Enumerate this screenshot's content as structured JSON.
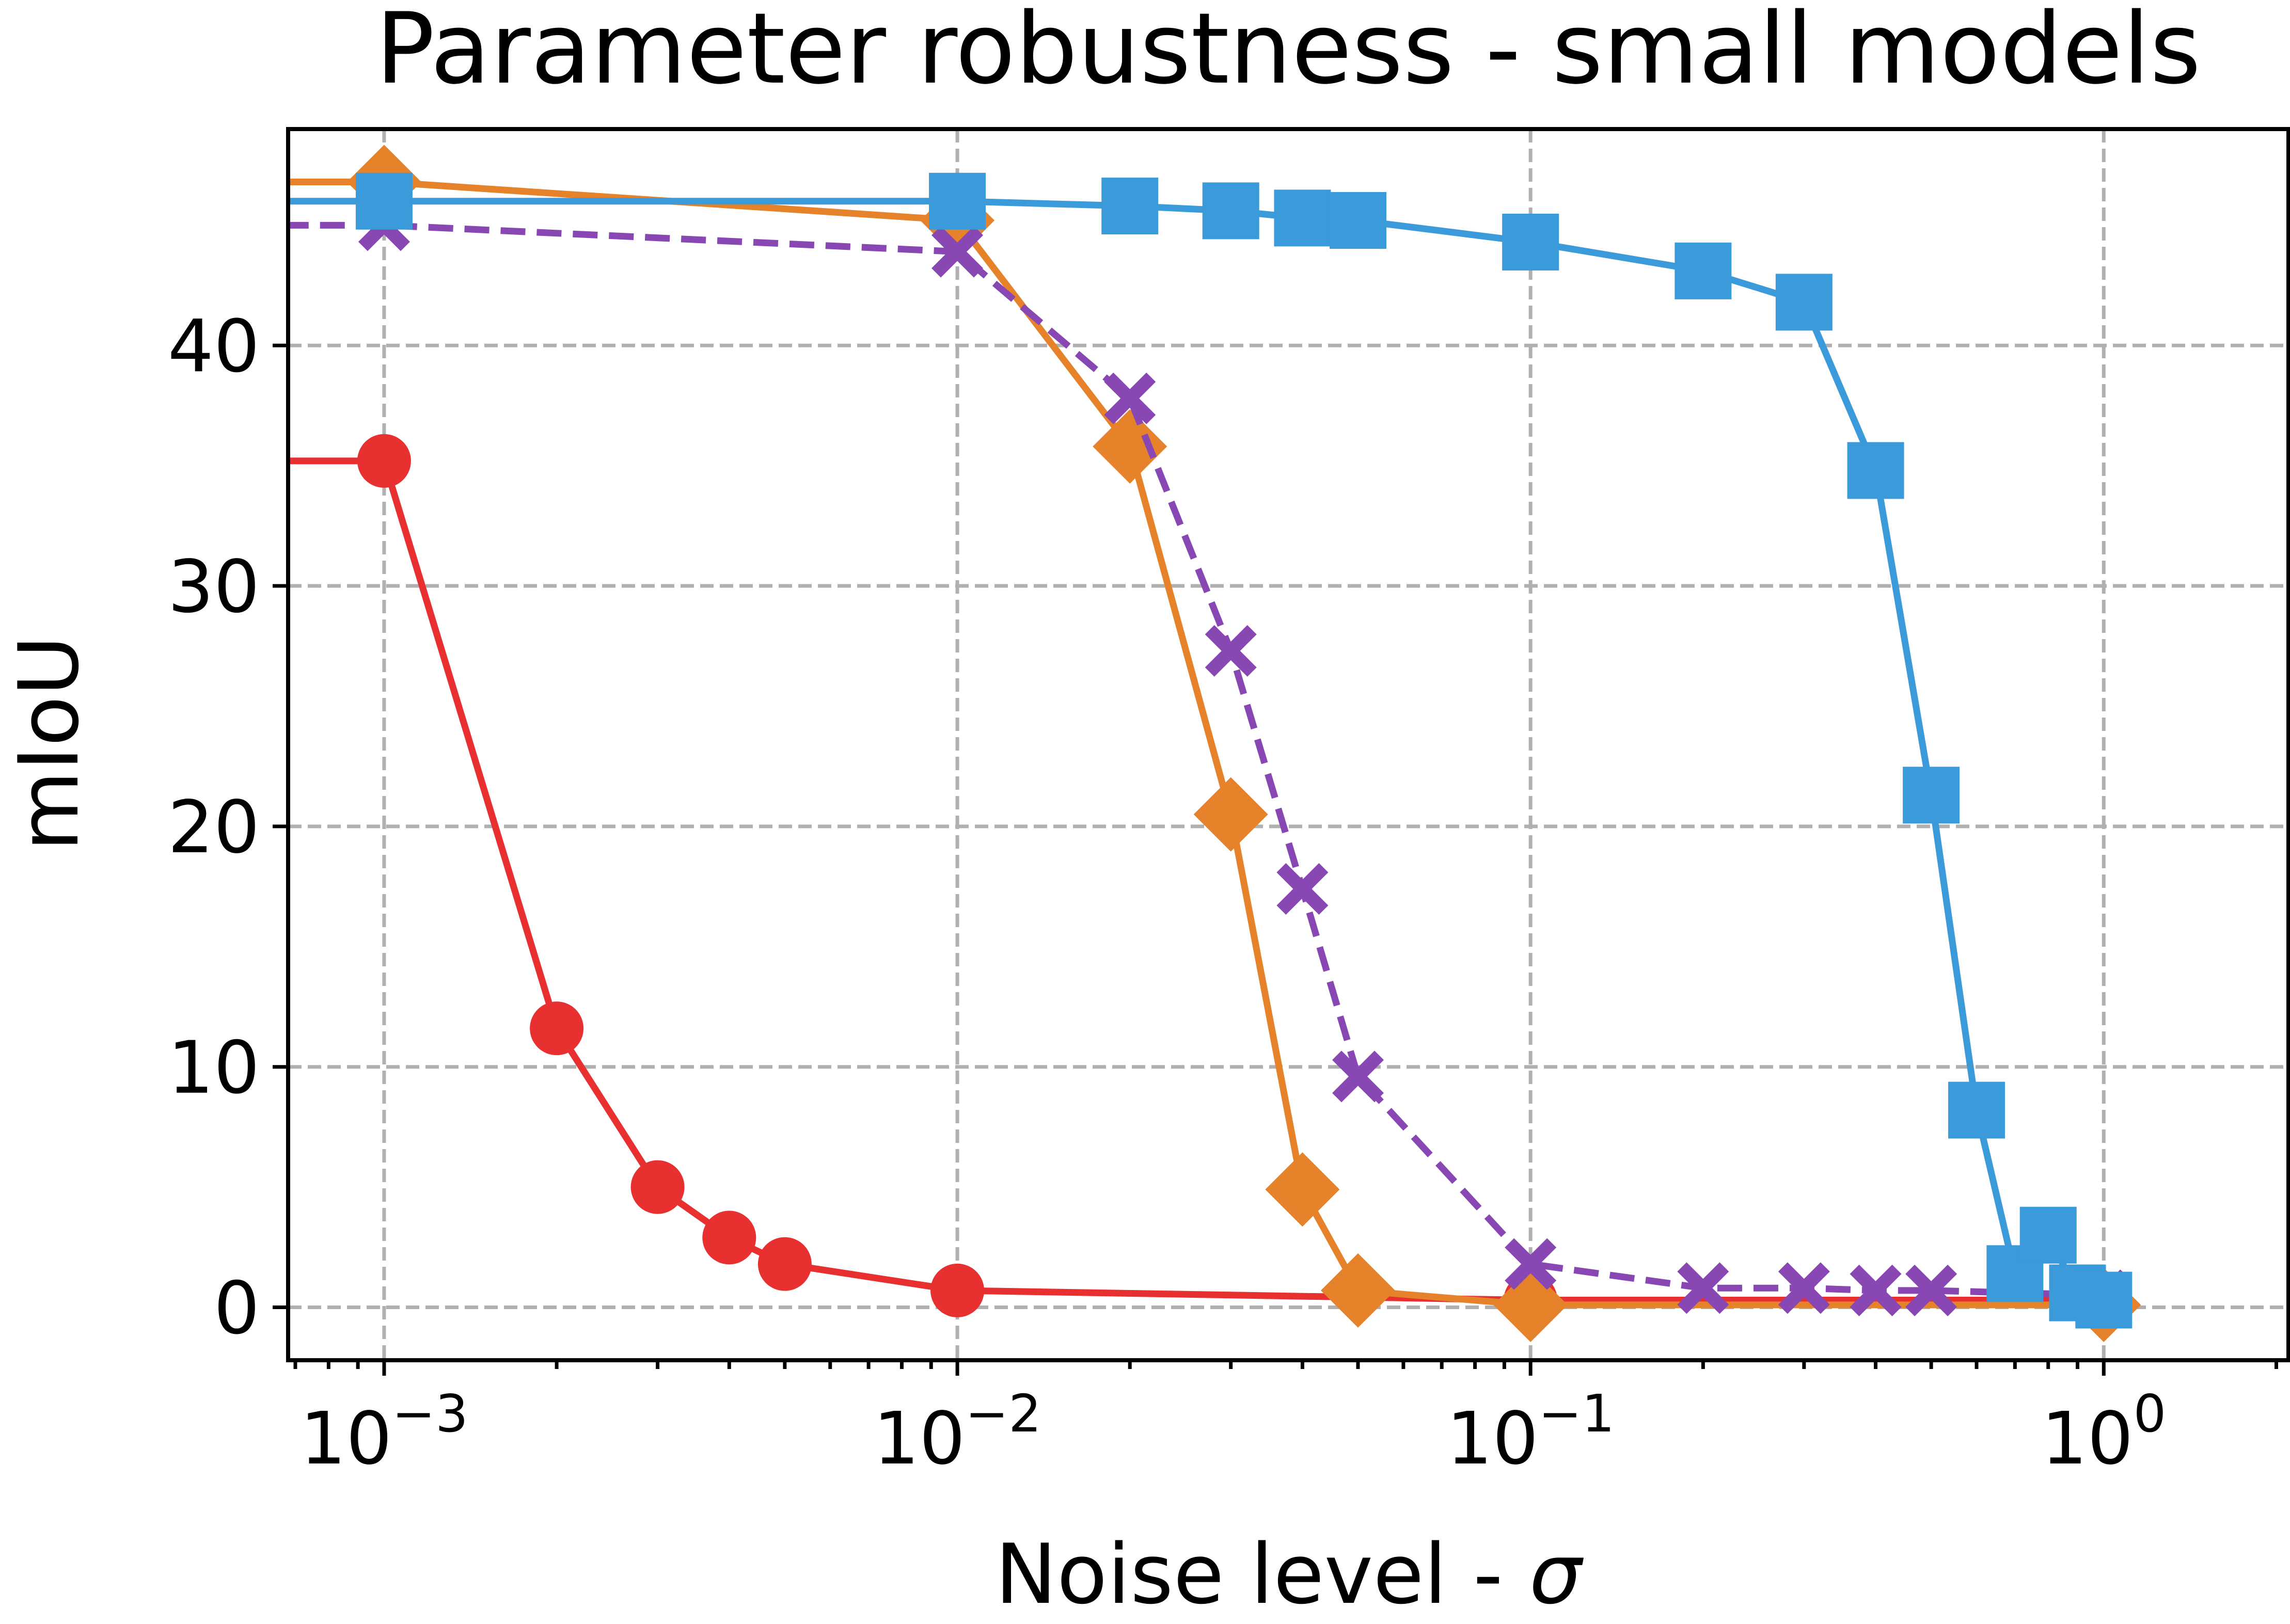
{
  "chart_data": {
    "type": "line",
    "title": "Parameter robustness - small models",
    "xlabel": "Noise level - ",
    "xlabel_symbol": "σ",
    "ylabel": "mIoU",
    "xscale": "log",
    "xlim": [
      0.00068,
      2.1
    ],
    "ylim": [
      -2.2,
      49
    ],
    "grid": true,
    "x_ticks": [
      {
        "base": "10",
        "exp": "−3",
        "value": 0.001
      },
      {
        "base": "10",
        "exp": "−2",
        "value": 0.01
      },
      {
        "base": "10",
        "exp": "−1",
        "value": 0.1
      },
      {
        "base": "10",
        "exp": "0",
        "value": 1
      }
    ],
    "y_ticks": [
      {
        "label": "0",
        "value": 0
      },
      {
        "label": "10",
        "value": 10
      },
      {
        "label": "20",
        "value": 20
      },
      {
        "label": "30",
        "value": 30
      },
      {
        "label": "40",
        "value": 40
      }
    ],
    "series": [
      {
        "color": "#e7302f",
        "marker": "circle",
        "dash": "solid",
        "x": [
          0.0005,
          0.001,
          0.002,
          0.003,
          0.004,
          0.005,
          0.01,
          0.1,
          1
        ],
        "y": [
          35.2,
          35.2,
          11.6,
          5.0,
          2.9,
          1.8,
          0.7,
          0.3,
          0.3
        ]
      },
      {
        "color": "#e5822a",
        "marker": "diamond",
        "dash": "solid",
        "x": [
          0.0005,
          0.001,
          0.01,
          0.02,
          0.03,
          0.04,
          0.05,
          0.1,
          1
        ],
        "y": [
          46.8,
          46.8,
          45.2,
          35.8,
          20.5,
          4.9,
          0.7,
          0.1,
          0.1
        ]
      },
      {
        "color": "#8847b2",
        "marker": "x",
        "dash": "dashed",
        "x": [
          0.0005,
          0.001,
          0.01,
          0.02,
          0.03,
          0.04,
          0.05,
          0.1,
          0.2,
          0.3,
          0.4,
          0.5,
          1
        ],
        "y": [
          45.0,
          45.0,
          43.9,
          37.8,
          27.3,
          17.4,
          9.6,
          1.8,
          0.8,
          0.8,
          0.7,
          0.7,
          0.5
        ]
      },
      {
        "color": "#3b9ad9",
        "marker": "square",
        "dash": "solid",
        "x": [
          0.0005,
          0.001,
          0.01,
          0.02,
          0.03,
          0.04,
          0.05,
          0.1,
          0.2,
          0.3,
          0.4,
          0.5,
          0.6,
          0.7,
          0.8,
          0.9,
          1
        ],
        "y": [
          46.0,
          46.0,
          46.0,
          45.8,
          45.6,
          45.3,
          45.2,
          44.3,
          43.1,
          41.8,
          34.8,
          21.3,
          8.2,
          1.4,
          3.0,
          0.6,
          0.3
        ]
      }
    ]
  }
}
